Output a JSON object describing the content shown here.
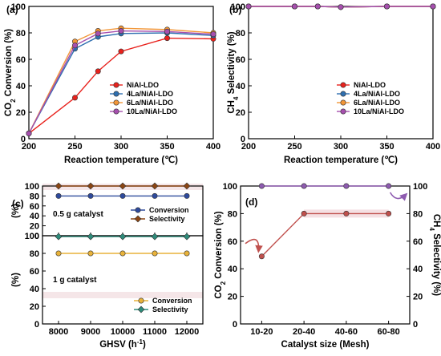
{
  "chart_data": [
    {
      "id": "a",
      "type": "line",
      "panel_label": "(a)",
      "xlabel": "Reaction temperature (℃)",
      "ylabel": "CO2 Conversion (%)",
      "xlim": [
        200,
        400
      ],
      "ylim": [
        0,
        100
      ],
      "xticks": [
        200,
        250,
        300,
        350,
        400
      ],
      "yticks": [
        0,
        20,
        40,
        60,
        80,
        100
      ],
      "legend_position": "center-right",
      "x": [
        200,
        250,
        275,
        300,
        350,
        400
      ],
      "series": [
        {
          "name": "NiAl-LDO",
          "color": "#e8211c",
          "values": [
            4,
            31,
            51,
            66,
            76,
            75.5
          ]
        },
        {
          "name": "4La/NiAl-LDO",
          "color": "#2e6fb0",
          "values": [
            4,
            68,
            77,
            79.5,
            80,
            78
          ]
        },
        {
          "name": "6La/NiAl-LDO",
          "color": "#f29637",
          "values": [
            4,
            73.5,
            81.5,
            83.5,
            82.5,
            80
          ]
        },
        {
          "name": "10La/NiAl-LDO",
          "color": "#a64fae",
          "values": [
            4,
            70.5,
            79.5,
            81.5,
            81,
            79
          ]
        }
      ]
    },
    {
      "id": "b",
      "type": "line",
      "panel_label": "(b)",
      "xlabel": "Reaction temperature (℃)",
      "ylabel": "CH4 Selectivity (%)",
      "xlim": [
        200,
        400
      ],
      "ylim": [
        0,
        100
      ],
      "xticks": [
        200,
        250,
        300,
        350,
        400
      ],
      "yticks": [
        0,
        20,
        40,
        60,
        80,
        100
      ],
      "legend_position": "bottom-right",
      "x": [
        200,
        250,
        275,
        300,
        350,
        400
      ],
      "series": [
        {
          "name": "NiAl-LDO",
          "color": "#e8211c",
          "values": [
            100,
            100,
            100,
            99.5,
            100,
            100
          ]
        },
        {
          "name": "4La/NiAl-LDO",
          "color": "#2e6fb0",
          "values": [
            100,
            100,
            100,
            99.5,
            100,
            100
          ]
        },
        {
          "name": "6La/NiAl-LDO",
          "color": "#f29637",
          "values": [
            100,
            100,
            100,
            99.5,
            100,
            100
          ]
        },
        {
          "name": "10La/NiAl-LDO",
          "color": "#a64fae",
          "values": [
            100,
            100,
            100,
            99.5,
            100,
            100
          ]
        }
      ]
    },
    {
      "id": "c1",
      "type": "line",
      "panel_label": "(c)",
      "ylabel": "(%)",
      "annotation": "0.5 g catalyst",
      "xlim": [
        7500,
        12500
      ],
      "ylim": [
        0,
        100
      ],
      "yticks": [
        0,
        20,
        40,
        60,
        80,
        100
      ],
      "legend_position": "center-right",
      "x": [
        8000,
        9000,
        10000,
        11000,
        12000
      ],
      "series": [
        {
          "name": "Conversion",
          "color": "#2e4a9c",
          "values": [
            80,
            80,
            80,
            80,
            80
          ]
        },
        {
          "name": "Selectivity",
          "color": "#8b4513",
          "values": [
            100,
            100,
            100,
            100,
            100
          ]
        }
      ]
    },
    {
      "id": "c2",
      "type": "line",
      "ylabel": "(%)",
      "annotation": "1 g catalyst",
      "xlabel": "GHSV (h-1)",
      "xlim": [
        7500,
        12500
      ],
      "ylim": [
        0,
        100
      ],
      "xticks": [
        8000,
        9000,
        10000,
        11000,
        12000
      ],
      "yticks": [
        0,
        20,
        40,
        60,
        80,
        100
      ],
      "legend_position": "bottom-right",
      "x": [
        8000,
        9000,
        10000,
        11000,
        12000
      ],
      "series": [
        {
          "name": "Conversion",
          "color": "#e8b23a",
          "values": [
            80,
            80,
            80,
            80,
            80
          ]
        },
        {
          "name": "Selectivity",
          "color": "#2e8b7a",
          "values": [
            99,
            99,
            99,
            99,
            99
          ]
        }
      ]
    },
    {
      "id": "d",
      "type": "line",
      "panel_label": "(d)",
      "xlabel": "Catalyst size (Mesh)",
      "ylabel": "CO2 Conversion (%)",
      "ylabel_right": "CH4 Selectivity (%)",
      "categories": [
        "10-20",
        "20-40",
        "40-60",
        "60-80"
      ],
      "ylim": [
        0,
        100
      ],
      "yticks": [
        0,
        20,
        40,
        60,
        80,
        100
      ],
      "series": [
        {
          "axis": "left",
          "color": "#c0504d",
          "values": [
            49,
            80,
            80,
            80
          ]
        },
        {
          "axis": "right",
          "color": "#8e5bb0",
          "values": [
            100,
            100,
            100,
            100
          ]
        }
      ]
    }
  ]
}
